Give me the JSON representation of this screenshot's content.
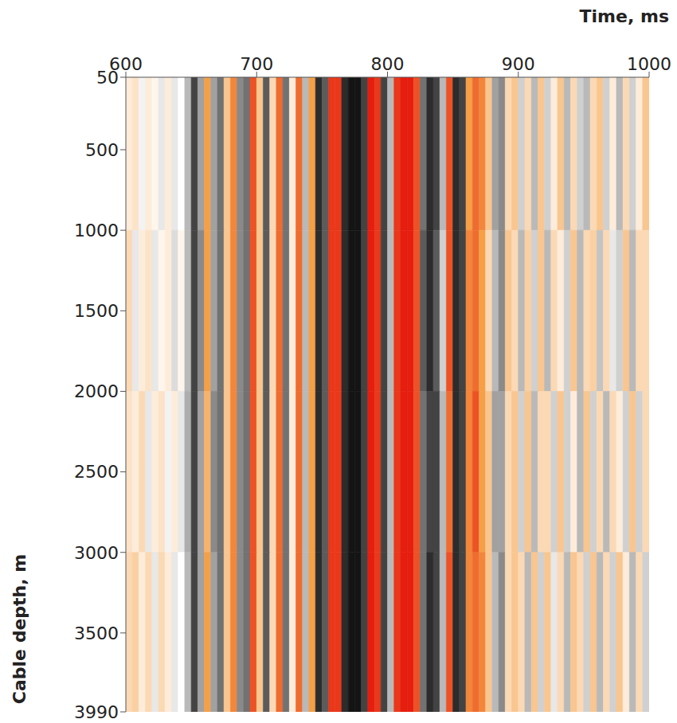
{
  "chart_data": {
    "type": "heatmap",
    "x_label": "Time, ms",
    "y_label": "Cable depth, m",
    "xlim": [
      600,
      1000
    ],
    "xticks": [
      600,
      700,
      800,
      900,
      1000
    ],
    "ylim": [
      50,
      3990
    ],
    "yticks": [
      50,
      500,
      1000,
      1500,
      2000,
      2500,
      3000,
      3500,
      3990
    ],
    "x_bins": [
      600,
      605,
      610,
      615,
      620,
      625,
      630,
      635,
      640,
      645,
      650,
      655,
      660,
      665,
      670,
      675,
      680,
      685,
      690,
      695,
      700,
      705,
      710,
      715,
      720,
      725,
      730,
      735,
      740,
      745,
      750,
      755,
      760,
      765,
      770,
      775,
      780,
      785,
      790,
      795,
      800,
      805,
      810,
      815,
      820,
      825,
      830,
      835,
      840,
      845,
      850,
      855,
      860,
      865,
      870,
      875,
      880,
      885,
      890,
      895,
      900,
      905,
      910,
      915,
      920,
      925,
      930,
      935,
      940,
      945,
      950,
      955,
      960,
      965,
      970,
      975,
      980,
      985,
      990,
      995,
      1000
    ],
    "y_bins": [
      50,
      1000,
      2000,
      3000,
      3990
    ],
    "zlim": [
      -1,
      1
    ],
    "cells": [
      [
        0.1,
        0.15,
        -0.05,
        0.1,
        0.05,
        -0.1,
        0.1,
        -0.1,
        0.0,
        -0.3,
        -0.8,
        -0.4,
        0.5,
        -0.4,
        -0.6,
        0.3,
        0.6,
        -0.5,
        -0.6,
        0.8,
        0.3,
        -0.7,
        0.2,
        0.7,
        -0.6,
        0.1,
        0.7,
        -0.3,
        0.5,
        -0.9,
        -0.7,
        0.9,
        0.9,
        -0.9,
        -1,
        -1,
        -0.8,
        1,
        0.9,
        -0.8,
        -0.3,
        0.9,
        1,
        1,
        0.8,
        -0.6,
        -0.9,
        -0.8,
        -0.3,
        0.8,
        -0.9,
        -0.8,
        0.5,
        0.7,
        0.6,
        0.3,
        -0.4,
        -0.5,
        0.2,
        0.3,
        -0.2,
        0.2,
        -0.3,
        0.3,
        -0.2,
        0.1,
        0.3,
        -0.3,
        0.2,
        -0.2,
        -0.3,
        0.2,
        0.3,
        -0.2,
        0.1,
        -0.3,
        0.2,
        -0.2,
        0.1,
        0.3
      ],
      [
        0.2,
        -0.1,
        0.1,
        0.15,
        -0.1,
        0.05,
        0.1,
        -0.15,
        0.05,
        -0.3,
        -0.8,
        -0.5,
        0.5,
        -0.4,
        -0.6,
        0.3,
        0.6,
        -0.5,
        -0.6,
        0.8,
        0.3,
        -0.7,
        0.2,
        0.7,
        -0.6,
        0.1,
        0.7,
        -0.3,
        0.5,
        -0.9,
        -0.7,
        0.9,
        0.9,
        -0.9,
        -1,
        -1,
        -0.8,
        1,
        0.9,
        -0.8,
        -0.3,
        0.9,
        1,
        1,
        0.8,
        -0.7,
        -0.9,
        -0.7,
        -0.2,
        0.8,
        -0.9,
        -0.8,
        0.6,
        0.7,
        0.5,
        0.2,
        -0.3,
        -0.5,
        0.3,
        0.2,
        -0.3,
        0.25,
        -0.2,
        0.3,
        -0.3,
        0.2,
        0.1,
        -0.2,
        0.3,
        -0.3,
        0.2,
        0.25,
        -0.25,
        0.2,
        -0.1,
        -0.2,
        0.3,
        -0.3,
        0.2,
        0.2
      ],
      [
        0.15,
        0.1,
        0.2,
        -0.1,
        0.1,
        0.15,
        -0.05,
        0.1,
        -0.1,
        -0.35,
        -0.8,
        -0.4,
        0.4,
        -0.5,
        -0.6,
        0.3,
        0.6,
        -0.5,
        -0.6,
        0.8,
        0.3,
        -0.7,
        0.2,
        0.7,
        -0.6,
        0.1,
        0.7,
        -0.3,
        0.5,
        -0.9,
        -0.7,
        0.9,
        0.9,
        -0.9,
        -1,
        -1,
        -0.8,
        1,
        0.9,
        -0.8,
        -0.3,
        0.9,
        1,
        1,
        0.8,
        -0.6,
        -0.8,
        -0.8,
        -0.3,
        0.7,
        -0.9,
        -0.8,
        0.6,
        0.8,
        0.5,
        0.3,
        -0.4,
        -0.4,
        0.2,
        0.3,
        -0.2,
        0.3,
        -0.3,
        0.2,
        0.2,
        -0.2,
        0.3,
        -0.2,
        0.1,
        -0.3,
        0.3,
        -0.2,
        0.2,
        -0.3,
        0.2,
        0.1,
        -0.2,
        0.3,
        -0.2,
        0.2
      ],
      [
        0.2,
        0.25,
        0.1,
        0.2,
        -0.1,
        0.2,
        0.1,
        -0.1,
        0.0,
        -0.3,
        -0.8,
        -0.4,
        0.5,
        -0.4,
        -0.6,
        0.3,
        0.6,
        -0.5,
        -0.6,
        0.8,
        0.3,
        -0.7,
        0.2,
        0.7,
        -0.6,
        0.1,
        0.7,
        -0.3,
        0.5,
        -0.9,
        -0.7,
        0.9,
        0.9,
        -0.9,
        -1,
        -1,
        -0.8,
        1,
        0.9,
        -0.8,
        -0.3,
        0.9,
        1,
        1,
        0.8,
        -0.6,
        -0.9,
        -0.8,
        -0.3,
        0.8,
        -0.9,
        -0.8,
        0.6,
        0.7,
        0.6,
        0.3,
        -0.3,
        -0.5,
        0.2,
        0.3,
        0.2,
        -0.3,
        0.3,
        -0.2,
        0.3,
        -0.1,
        0.2,
        -0.3,
        0.3,
        0.2,
        -0.2,
        0.3,
        -0.3,
        0.2,
        -0.2,
        0.3,
        0.1,
        -0.3,
        0.2,
        -0.2
      ]
    ]
  }
}
